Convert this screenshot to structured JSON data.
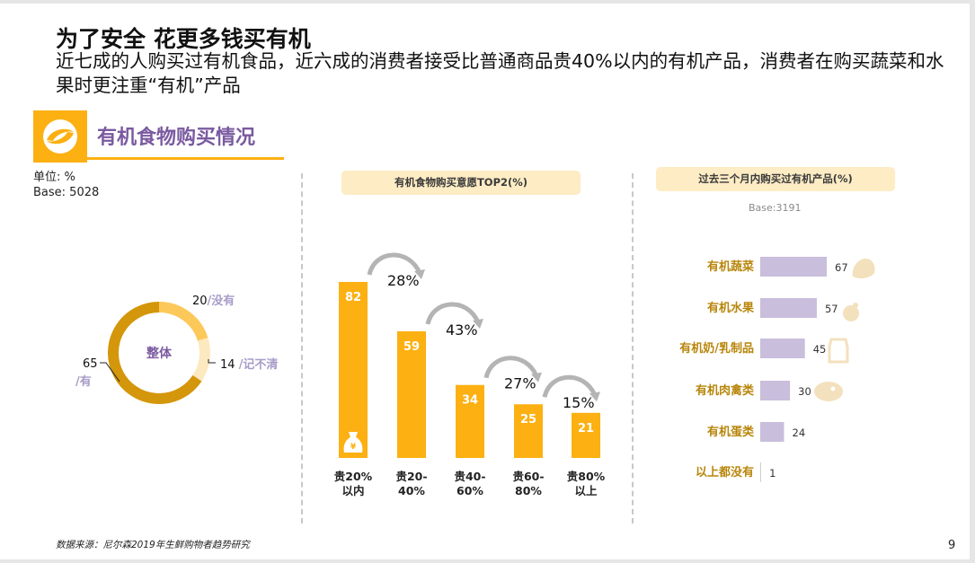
{
  "header": {
    "title": "为了安全 花更多钱买有机",
    "subtitle": "近七成的人购买过有机食品，近六成的消费者接受比普通商品贵40%以内的有机产品，消费者在购买蔬菜和水果时更注重“有机”产品"
  },
  "section": {
    "icon": "organic-leaf-logo-icon",
    "title": "有机食物购买情况"
  },
  "unit_label": "单位: %",
  "base_label": "Base: 5028",
  "footer": {
    "source": "数据来源：尼尔森2019年生鲜购物者趋势研究",
    "page_number": "9"
  },
  "colors": {
    "accent": "#fcb012",
    "donut_yes": "#d4960a",
    "donut_no": "#fdc85a",
    "donut_unsure": "#fde9c0",
    "purple_text": "#a89cc8",
    "hbar": "#c9bedc",
    "gold_label": "#b8860b"
  },
  "chart_data": [
    {
      "type": "pie",
      "title": "整体",
      "variant": "donut",
      "slices": [
        {
          "label": "/有",
          "value": 65
        },
        {
          "label": "/没有",
          "value": 20
        },
        {
          "label": "/记不清",
          "value": 14
        }
      ]
    },
    {
      "type": "bar",
      "title": "有机食物购买意愿TOP2(%)",
      "categories": [
        "贵20%\n以内",
        "贵20-\n40%",
        "贵40-\n60%",
        "贵60-\n80%",
        "贵80%\n以上"
      ],
      "values": [
        82,
        59,
        34,
        25,
        21
      ],
      "ylim": [
        0,
        90
      ],
      "drop_annotations": [
        "28%",
        "43%",
        "27%",
        "15%"
      ],
      "icon": "money-bag-icon"
    },
    {
      "type": "bar",
      "orientation": "horizontal",
      "title": "过去三个月内购买过有机产品(%)",
      "subtitle": "Base:3191",
      "categories": [
        "有机蔬菜",
        "有机水果",
        "有机奶/乳制品",
        "有机肉禽类",
        "有机蛋类",
        "以上都没有"
      ],
      "values": [
        67,
        57,
        45,
        30,
        24,
        1
      ],
      "icons": [
        "vegetable-icon",
        "fruit-icon",
        "milk-carton-icon",
        "meat-icon",
        "",
        ""
      ],
      "xlim": [
        0,
        70
      ]
    }
  ]
}
